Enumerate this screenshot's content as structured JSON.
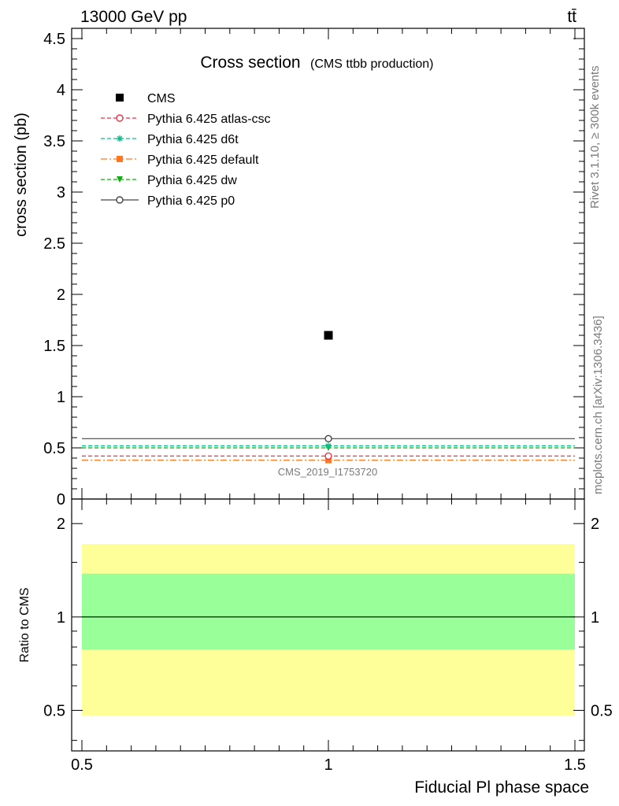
{
  "header": {
    "left": "13000 GeV pp",
    "right": "tt̄"
  },
  "side_text": {
    "top": "Rivet 3.1.10, ≥ 300k events",
    "bottom": "mcplots.cern.ch [arXiv:1306.3436]"
  },
  "chart_data": [
    {
      "type": "scatter",
      "title": "Cross section",
      "subtitle": "(CMS ttbb production)",
      "xlabel": "Fiducial Pl phase space",
      "ylabel": "cross section (pb)",
      "xlim": [
        0.5,
        1.5
      ],
      "ylim": [
        0,
        4.6
      ],
      "yticks": [
        "0",
        "0.5",
        "1",
        "1.5",
        "2",
        "2.5",
        "3",
        "3.5",
        "4",
        "4.5"
      ],
      "yticks_values": [
        0,
        0.5,
        1,
        1.5,
        2,
        2.5,
        3,
        3.5,
        4,
        4.5
      ],
      "xticks": [
        "0.5",
        "1",
        "1.5"
      ],
      "xticks_values": [
        0.5,
        1,
        1.5
      ],
      "annotation": "CMS_2019_I1753720",
      "legend_position": "top-left",
      "series": [
        {
          "name": "CMS",
          "x": [
            1.0
          ],
          "y": [
            1.6
          ],
          "color": "#000000",
          "marker": "square-filled",
          "line": "none"
        },
        {
          "name": "Pythia 6.425 atlas-csc",
          "x": [
            1.0
          ],
          "y": [
            0.42
          ],
          "color": "#ee3344",
          "marker": "circle-open",
          "line": "dashed"
        },
        {
          "name": "Pythia 6.425 d6t",
          "x": [
            1.0
          ],
          "y": [
            0.52
          ],
          "color": "#11bb88",
          "marker": "star",
          "line": "dashed"
        },
        {
          "name": "Pythia 6.425 default",
          "x": [
            1.0
          ],
          "y": [
            0.38
          ],
          "color": "#ff7722",
          "marker": "square-filled",
          "line": "dashdot"
        },
        {
          "name": "Pythia 6.425 dw",
          "x": [
            1.0
          ],
          "y": [
            0.5
          ],
          "color": "#11aa11",
          "marker": "triangle-down",
          "line": "dashed"
        },
        {
          "name": "Pythia 6.425 p0",
          "x": [
            1.0
          ],
          "y": [
            0.59
          ],
          "color": "#444444",
          "marker": "circle-open",
          "line": "solid"
        }
      ]
    },
    {
      "type": "area",
      "ylabel": "Ratio to CMS",
      "xlim": [
        0.5,
        1.5
      ],
      "ylim": [
        0.37,
        2.4
      ],
      "yticks": [
        "0.5",
        "1",
        "2"
      ],
      "yticks_values": [
        0.5,
        1,
        2
      ],
      "reference_line": 1,
      "bands": [
        {
          "kind": "outer",
          "color": "#ffff99",
          "low": 0.48,
          "high": 1.72
        },
        {
          "kind": "inner",
          "color": "#99ff99",
          "low": 0.785,
          "high": 1.38
        }
      ]
    }
  ]
}
